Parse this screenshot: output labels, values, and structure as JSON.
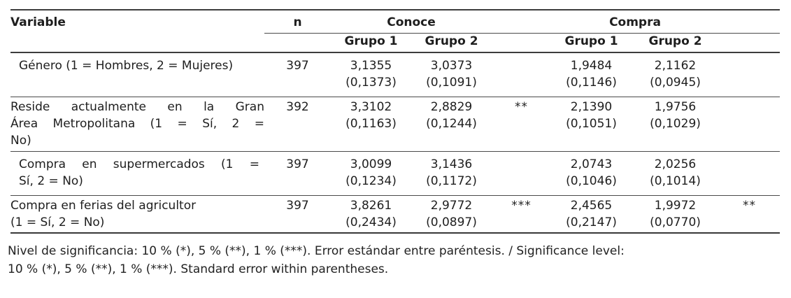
{
  "table": {
    "columns": {
      "variable": "Variable",
      "n": "n",
      "conoce": "Conoce",
      "compra": "Compra",
      "grupo1": "Grupo 1",
      "grupo2": "Grupo 2"
    },
    "rows": [
      {
        "variable_lines": [
          "Género (1 = Hombres, 2 = Mujeres)"
        ],
        "n": "397",
        "conoce": {
          "g1": "3,1355",
          "g1_se": "(0,1373)",
          "g2": "3,0373",
          "g2_se": "(0,1091)",
          "sig": ""
        },
        "compra": {
          "g1": "1,9484",
          "g1_se": "(0,1146)",
          "g2": "2,1162",
          "g2_se": "(0,0945)",
          "sig": ""
        }
      },
      {
        "variable_lines": [
          "Reside actualmente en la Gran",
          "Área Metropolitana (1 = Sí, 2 =",
          "No)"
        ],
        "n": "392",
        "conoce": {
          "g1": "3,3102",
          "g1_se": "(0,1163)",
          "g2": "2,8829",
          "g2_se": "(0,1244)",
          "sig": "**"
        },
        "compra": {
          "g1": "2,1390",
          "g1_se": "(0,1051)",
          "g2": "1,9756",
          "g2_se": "(0,1029)",
          "sig": ""
        }
      },
      {
        "variable_lines": [
          "Compra en supermercados (1 =",
          "Sí, 2 = No)"
        ],
        "n": "397",
        "conoce": {
          "g1": "3,0099",
          "g1_se": "(0,1234)",
          "g2": "3,1436",
          "g2_se": "(0,1172)",
          "sig": ""
        },
        "compra": {
          "g1": "2,0743",
          "g1_se": "(0,1046)",
          "g2": "2,0256",
          "g2_se": "(0,1014)",
          "sig": ""
        }
      },
      {
        "variable_lines": [
          "Compra en ferias del agricultor",
          "(1 = Sí, 2 = No)"
        ],
        "n": "397",
        "conoce": {
          "g1": "3,8261",
          "g1_se": "(0,2434)",
          "g2": "2,9772",
          "g2_se": "(0,0897)",
          "sig": "***"
        },
        "compra": {
          "g1": "2,4565",
          "g1_se": "(0,2147)",
          "g2": "1,9972",
          "g2_se": "(0,0770)",
          "sig": "**"
        }
      }
    ],
    "footnote_lines": [
      "Nivel de significancia: 10 % (*), 5 % (**), 1 % (***). Error estándar entre paréntesis. / Significance level:",
      "10 % (*), 5 % (**), 1 % (***). Standard error within parentheses."
    ]
  },
  "colors": {
    "background": "#ffffff",
    "text": "#1e1e1e",
    "rule": "#3c3c3c"
  }
}
